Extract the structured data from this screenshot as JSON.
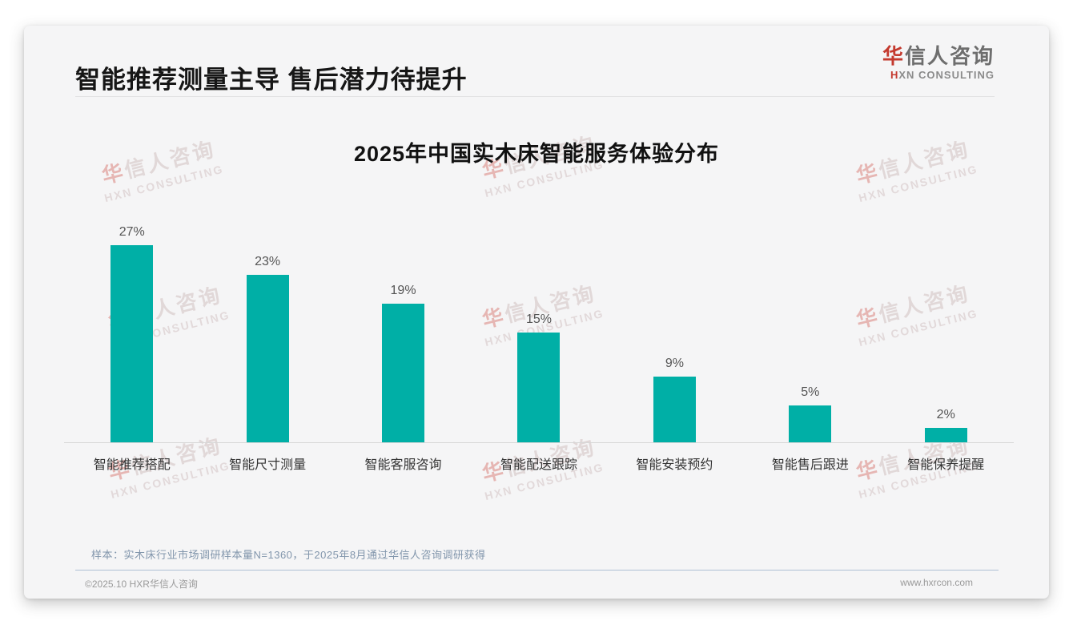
{
  "slide": {
    "title": "智能推荐测量主导 售后潜力待提升",
    "sample_note": "样本：实木床行业市场调研样本量N=1360，于2025年8月通过华信人咨询调研获得",
    "footer_left": "©2025.10 HXR华信人咨询",
    "footer_right": "www.hxrcon.com"
  },
  "logo": {
    "cn_accent": "华",
    "cn_rest": "信人咨询",
    "en_accent": "H",
    "en_rest": "XN CONSULTING"
  },
  "watermark": {
    "cn_accent": "华",
    "cn_rest": "信人咨询",
    "en": "HXN CONSULTING"
  },
  "colors": {
    "bar": "#00afa6",
    "logo_accent": "#c43a2f",
    "note_text": "#8296ac"
  },
  "chart_data": {
    "type": "bar",
    "title": "2025年中国实木床智能服务体验分布",
    "categories": [
      "智能推荐搭配",
      "智能尺寸测量",
      "智能客服咨询",
      "智能配送跟踪",
      "智能安装预约",
      "智能售后跟进",
      "智能保养提醒"
    ],
    "values": [
      27,
      23,
      19,
      15,
      9,
      5,
      2
    ],
    "unit": "%",
    "value_labels": [
      "27%",
      "23%",
      "19%",
      "15%",
      "9%",
      "5%",
      "2%"
    ],
    "xlabel": "",
    "ylabel": "",
    "ylim": [
      0,
      30
    ],
    "grid": false,
    "legend": false,
    "bar_color": "#00afa6",
    "value_labels_shown": true
  }
}
